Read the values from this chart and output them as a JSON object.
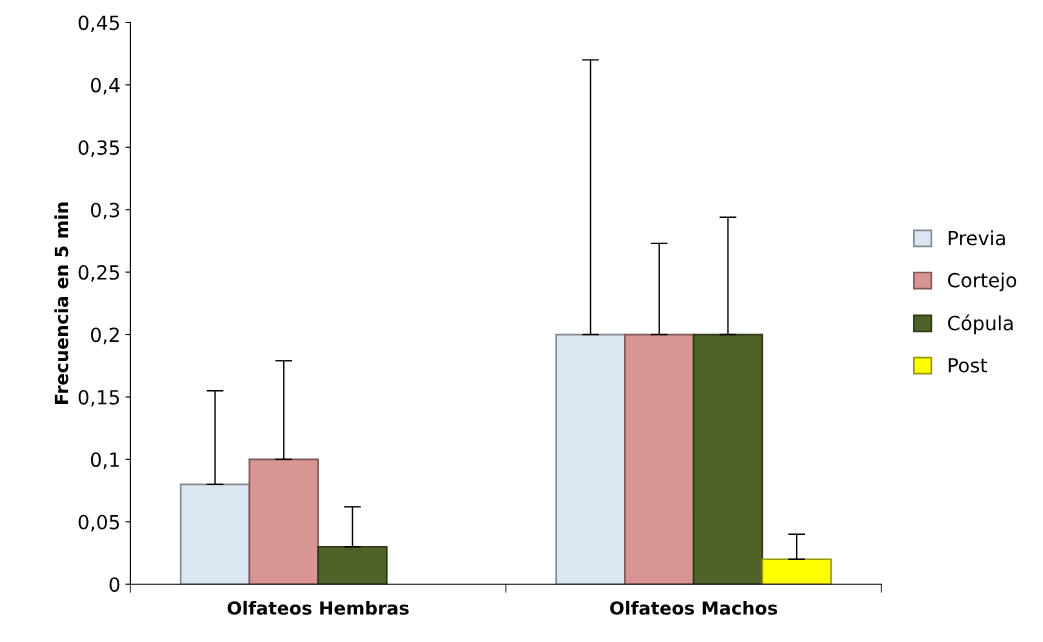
{
  "chart_data": {
    "type": "bar",
    "ylabel": "Frecuencia en 5 min",
    "categories": [
      "Olfateos Hembras",
      "Olfateos Machos"
    ],
    "series": [
      {
        "name": "Previa",
        "color": "#dce6f2",
        "values": [
          0.08,
          0.2
        ],
        "errors": [
          [
            0.08,
            0.155
          ],
          [
            0.2,
            0.42
          ]
        ]
      },
      {
        "name": "Cortejo",
        "color": "#d99594",
        "values": [
          0.1,
          0.2
        ],
        "errors": [
          [
            0.1,
            0.179
          ],
          [
            0.2,
            0.273
          ]
        ]
      },
      {
        "name": "Cópula",
        "color": "#4f6228",
        "values": [
          0.03,
          0.2
        ],
        "errors": [
          [
            0.03,
            0.062
          ],
          [
            0.2,
            0.294
          ]
        ]
      },
      {
        "name": "Post",
        "color": "#ffff00",
        "values": [
          null,
          0.02
        ],
        "errors": [
          null,
          [
            0.02,
            0.04
          ]
        ]
      }
    ],
    "ylim": [
      0,
      0.45
    ],
    "yticks": [
      0,
      {
        "value": 0.05,
        "label": "0,05"
      },
      {
        "value": 0.1,
        "label": "0,1"
      },
      {
        "value": 0.15,
        "label": "0,15"
      },
      {
        "value": 0.2,
        "label": "0,2"
      },
      {
        "value": 0.25,
        "label": "0,25"
      },
      {
        "value": 0.3,
        "label": "0,3"
      },
      {
        "value": 0.35,
        "label": "0,35"
      },
      {
        "value": 0.4,
        "label": "0,4"
      },
      {
        "value": 0.45,
        "label": "0,45"
      }
    ],
    "grid": false,
    "legend": "right"
  }
}
